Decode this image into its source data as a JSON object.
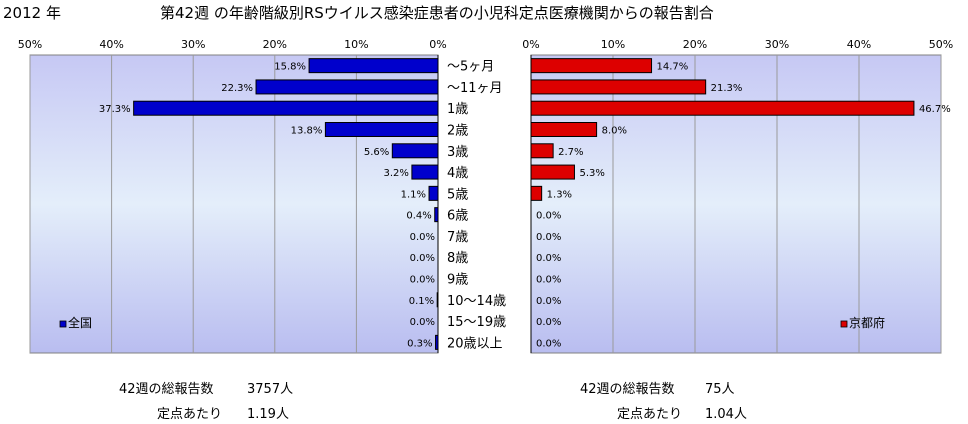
{
  "year_label": "2012 年",
  "title": "第42週 の年齢階級別RSウイルス感染症患者の小児科定点医療機関からの報告割合",
  "colors": {
    "national_bar": "#0000cc",
    "kyoto_bar": "#dd0000",
    "plot_grad_top": "#c6c8f4",
    "plot_grad_mid": "#e4eefa",
    "plot_grad_bottom": "#b9bdf0"
  },
  "chart_data": [
    {
      "type": "bar",
      "orientation": "horizontal",
      "x_direction": "reversed",
      "legend": "全国",
      "legend_position": "bottom-left",
      "categories": [
        "～5ヶ月",
        "～11ヶ月",
        "1歳",
        "2歳",
        "3歳",
        "4歳",
        "5歳",
        "6歳",
        "7歳",
        "8歳",
        "9歳",
        "10～14歳",
        "15～19歳",
        "20歳以上"
      ],
      "values": [
        15.8,
        22.3,
        37.3,
        13.8,
        5.6,
        3.2,
        1.1,
        0.4,
        0.0,
        0.0,
        0.0,
        0.1,
        0.0,
        0.3
      ],
      "value_labels": [
        "15.8%",
        "22.3%",
        "37.3%",
        "13.8%",
        "5.6%",
        "3.2%",
        "1.1%",
        "0.4%",
        "0.0%",
        "0.0%",
        "0.0%",
        "0.1%",
        "0.0%",
        "0.3%"
      ],
      "xlim": [
        0,
        50
      ],
      "x_ticks": [
        "50%",
        "40%",
        "30%",
        "20%",
        "10%",
        "0%"
      ],
      "grid": true
    },
    {
      "type": "bar",
      "orientation": "horizontal",
      "legend": "京都府",
      "legend_position": "bottom-right",
      "categories": [
        "～5ヶ月",
        "～11ヶ月",
        "1歳",
        "2歳",
        "3歳",
        "4歳",
        "5歳",
        "6歳",
        "7歳",
        "8歳",
        "9歳",
        "10～14歳",
        "15～19歳",
        "20歳以上"
      ],
      "values": [
        14.7,
        21.3,
        46.7,
        8.0,
        2.7,
        5.3,
        1.3,
        0.0,
        0.0,
        0.0,
        0.0,
        0.0,
        0.0,
        0.0
      ],
      "value_labels": [
        "14.7%",
        "21.3%",
        "46.7%",
        "8.0%",
        "2.7%",
        "5.3%",
        "1.3%",
        "0.0%",
        "0.0%",
        "0.0%",
        "0.0%",
        "0.0%",
        "0.0%",
        "0.0%"
      ],
      "xlim": [
        0,
        50
      ],
      "x_ticks": [
        "0%",
        "10%",
        "20%",
        "30%",
        "40%",
        "50%"
      ],
      "grid": true
    }
  ],
  "footer": {
    "national_reports_label": "42週の総報告数",
    "national_reports_value": "3757人",
    "national_per_site_label": "定点あたり",
    "national_per_site_value": "1.19人",
    "kyoto_reports_label": "42週の総報告数",
    "kyoto_reports_value": "75人",
    "kyoto_per_site_label": "定点あたり",
    "kyoto_per_site_value": "1.04人"
  }
}
